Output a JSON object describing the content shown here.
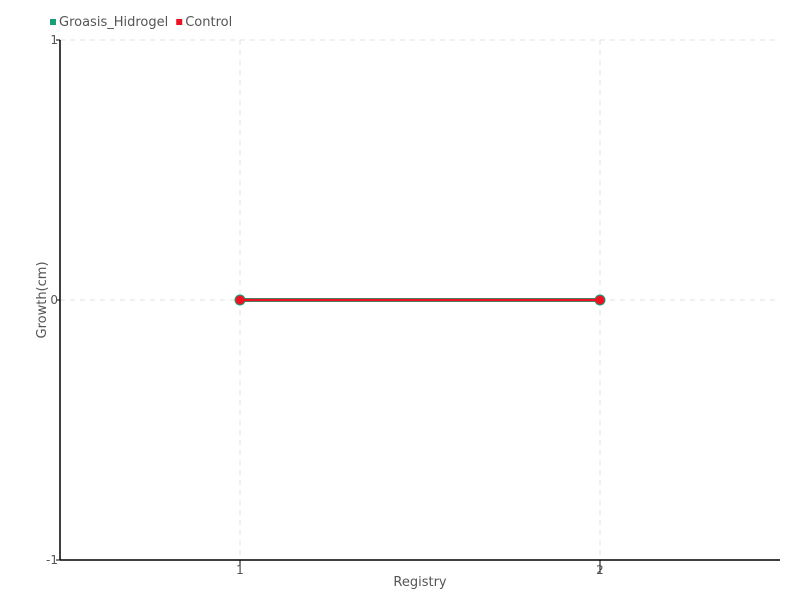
{
  "chart_data": {
    "type": "line",
    "title": "",
    "xlabel": "Registry",
    "ylabel": "Growth(cm)",
    "x": [
      1,
      2
    ],
    "xlim": [
      0.5,
      2.5
    ],
    "ylim": [
      -1,
      1
    ],
    "xticks": [
      1,
      2
    ],
    "yticks": [
      -1,
      0,
      1
    ],
    "grid": true,
    "legend_placement": "top-left",
    "series": [
      {
        "name": "Groasis_Hidrogel",
        "values": [
          0,
          0
        ],
        "color": "#1a9e77"
      },
      {
        "name": "Control",
        "values": [
          0,
          0
        ],
        "color": "#ee1122"
      }
    ]
  }
}
